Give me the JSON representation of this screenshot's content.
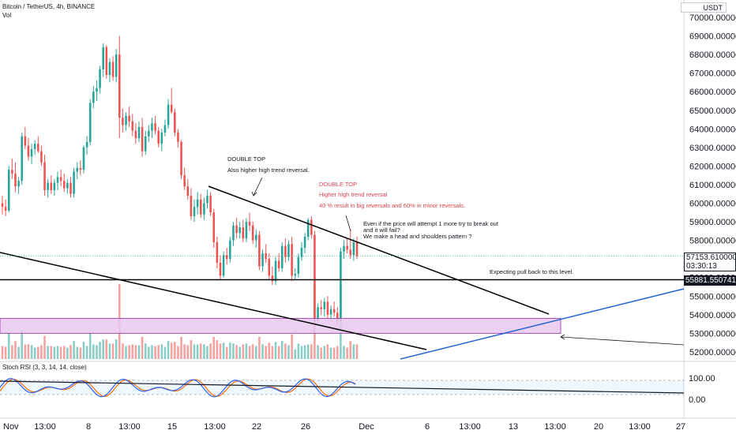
{
  "header": {
    "title": "Bitcoin / TetherUS, 4h, BINANCE",
    "volume_label": "Vol",
    "currency_label": "USDT"
  },
  "rsi_panel": {
    "label": "Stoch RSI (3, 3, 14, 14, close)",
    "upper_label": "100.00",
    "lower_label": "0.00",
    "k_color": "#2962ff",
    "d_color": "#ff6d00"
  },
  "price_boxes": {
    "last_price": "57153.610000",
    "countdown": "03:30:13",
    "level_price": "55881.550741"
  },
  "annotations": {
    "double_top_1_title": "DOUBLE TOP",
    "double_top_1_text": "Also higher high trend reversal.",
    "double_top_2_title": "DOUBLE TOP",
    "double_top_2_line1": "Higher high trend reversal",
    "double_top_2_line2": "40 % result in big reversals and 60% in minor reversals.",
    "note_line1": "Even if the price will attempt 1 more try to break out",
    "note_line2": "and it will fail?",
    "note_line3": "We make a head and shoulders pattern ?",
    "pullback_text": "Expecting pull back to this level."
  },
  "colors": {
    "up_candle": "#26a69a",
    "down_candle": "#ef5350",
    "trend_line_down": "#000000",
    "trend_line_up": "#1e63d6",
    "zone_fill": "#e7c8ee",
    "zone_border": "#9c27b0",
    "red_text": "#e0434e"
  },
  "chart_data": {
    "type": "candlestick",
    "symbol": "Bitcoin / TetherUS",
    "interval": "4h",
    "exchange": "BINANCE",
    "ylim": [
      51800,
      70300
    ],
    "y_ticks": [
      "52000.000000",
      "53000.000000",
      "54000.000000",
      "55000.000000",
      "56000.000000",
      "57000.000000",
      "58000.000000",
      "59000.000000",
      "60000.000000",
      "61000.000000",
      "62000.000000",
      "63000.000000",
      "64000.000000",
      "65000.000000",
      "66000.000000",
      "67000.000000",
      "68000.000000",
      "69000.000000",
      "70000.000000"
    ],
    "x_ticks": [
      "Nov",
      "13:00",
      "8",
      "13:00",
      "15",
      "13:00",
      "22",
      "26",
      "Dec",
      "6",
      "13:00",
      "13",
      "13:00",
      "20",
      "13:00",
      "27"
    ],
    "last_price": 57153.61,
    "horizontal_level": 55881.550741,
    "demand_zone": [
      53000,
      53800
    ],
    "candles": [
      [
        60000,
        60400,
        59400,
        59800
      ],
      [
        59800,
        60200,
        59300,
        59600
      ],
      [
        59600,
        62000,
        59500,
        61800
      ],
      [
        61800,
        62400,
        61300,
        61600
      ],
      [
        61600,
        62200,
        60600,
        60900
      ],
      [
        60900,
        61400,
        60500,
        61200
      ],
      [
        61200,
        63800,
        61000,
        63600
      ],
      [
        63600,
        64100,
        62900,
        63100
      ],
      [
        63100,
        63500,
        62300,
        62500
      ],
      [
        62500,
        63200,
        62100,
        62900
      ],
      [
        62900,
        63400,
        62600,
        63200
      ],
      [
        63200,
        63600,
        62700,
        62800
      ],
      [
        62800,
        63100,
        62000,
        62200
      ],
      [
        62200,
        62600,
        60400,
        60700
      ],
      [
        60700,
        61300,
        60300,
        61100
      ],
      [
        61100,
        61500,
        60500,
        60700
      ],
      [
        60700,
        61300,
        60400,
        61100
      ],
      [
        61100,
        61700,
        60700,
        61400
      ],
      [
        61400,
        61800,
        60900,
        61200
      ],
      [
        61200,
        61600,
        60600,
        60800
      ],
      [
        60800,
        61300,
        60500,
        61100
      ],
      [
        61100,
        61400,
        60300,
        60500
      ],
      [
        60500,
        61900,
        60300,
        61700
      ],
      [
        61700,
        62200,
        61300,
        61900
      ],
      [
        61900,
        62300,
        61500,
        61800
      ],
      [
        61800,
        63100,
        61600,
        63000
      ],
      [
        63000,
        63600,
        62600,
        63300
      ],
      [
        63300,
        65600,
        63100,
        65400
      ],
      [
        65400,
        66300,
        65100,
        66000
      ],
      [
        66000,
        66600,
        65500,
        66200
      ],
      [
        66200,
        67400,
        65900,
        67200
      ],
      [
        67200,
        68600,
        66800,
        68400
      ],
      [
        68400,
        68500,
        66700,
        66900
      ],
      [
        66900,
        67800,
        66500,
        67600
      ],
      [
        67600,
        67900,
        66600,
        66800
      ],
      [
        66800,
        68300,
        66500,
        68000
      ],
      [
        68000,
        69000,
        63500,
        64600
      ],
      [
        64600,
        65100,
        63800,
        64200
      ],
      [
        64200,
        64900,
        63900,
        64700
      ],
      [
        64700,
        65200,
        64100,
        64400
      ],
      [
        64400,
        64800,
        63600,
        63900
      ],
      [
        63900,
        64300,
        63200,
        63500
      ],
      [
        63500,
        64400,
        63300,
        64100
      ],
      [
        64100,
        64600,
        62500,
        62800
      ],
      [
        62800,
        63900,
        62600,
        63600
      ],
      [
        63600,
        64200,
        63300,
        63900
      ],
      [
        63900,
        64600,
        63500,
        64300
      ],
      [
        64300,
        64700,
        63700,
        63900
      ],
      [
        63900,
        64100,
        63000,
        63200
      ],
      [
        63200,
        64000,
        62800,
        63800
      ],
      [
        63800,
        64500,
        63600,
        64200
      ],
      [
        64200,
        65600,
        64000,
        65300
      ],
      [
        65300,
        66200,
        64800,
        64900
      ],
      [
        64900,
        65100,
        63600,
        63800
      ],
      [
        63800,
        64000,
        63000,
        63300
      ],
      [
        63300,
        63400,
        61300,
        61500
      ],
      [
        61500,
        61900,
        60700,
        60900
      ],
      [
        60900,
        61300,
        60200,
        60400
      ],
      [
        60400,
        60800,
        59100,
        59300
      ],
      [
        59300,
        60200,
        59000,
        59800
      ],
      [
        59800,
        60600,
        59400,
        60200
      ],
      [
        60200,
        60500,
        59200,
        59400
      ],
      [
        59400,
        60300,
        59100,
        60000
      ],
      [
        60000,
        60700,
        59700,
        60400
      ],
      [
        60400,
        60600,
        59300,
        59500
      ],
      [
        59500,
        59700,
        57600,
        57900
      ],
      [
        57900,
        58200,
        56500,
        56800
      ],
      [
        56800,
        57200,
        55900,
        56100
      ],
      [
        56100,
        57400,
        56000,
        57200
      ],
      [
        57200,
        57600,
        56700,
        57000
      ],
      [
        57000,
        58200,
        56800,
        58000
      ],
      [
        58000,
        59000,
        57700,
        58800
      ],
      [
        58800,
        59200,
        58100,
        58400
      ],
      [
        58400,
        59000,
        58100,
        58700
      ],
      [
        58700,
        59100,
        57900,
        58100
      ],
      [
        58100,
        59200,
        57900,
        59000
      ],
      [
        59000,
        59500,
        58500,
        58800
      ],
      [
        58800,
        59000,
        57800,
        58000
      ],
      [
        58000,
        58600,
        57600,
        58300
      ],
      [
        58300,
        58500,
        56400,
        56600
      ],
      [
        56600,
        57500,
        56300,
        57300
      ],
      [
        57300,
        57800,
        56800,
        57000
      ],
      [
        57000,
        57300,
        55900,
        56100
      ],
      [
        56100,
        56600,
        55600,
        55800
      ],
      [
        55800,
        57100,
        55600,
        56900
      ],
      [
        56900,
        57300,
        56300,
        56500
      ],
      [
        56500,
        57900,
        56300,
        57700
      ],
      [
        57700,
        58100,
        56800,
        57100
      ],
      [
        57100,
        58000,
        56900,
        57800
      ],
      [
        57800,
        58200,
        55800,
        56100
      ],
      [
        56100,
        56500,
        55900,
        56200
      ],
      [
        56200,
        57300,
        56000,
        57100
      ],
      [
        57100,
        57900,
        56900,
        57600
      ],
      [
        57600,
        58400,
        57300,
        58200
      ],
      [
        58200,
        59200,
        58000,
        59100
      ],
      [
        59100,
        59300,
        58100,
        58300
      ],
      [
        58300,
        58500,
        53500,
        53700
      ],
      [
        53700,
        54600,
        53500,
        54400
      ],
      [
        54400,
        54800,
        54000,
        54300
      ],
      [
        54300,
        54900,
        53900,
        54700
      ],
      [
        54700,
        55000,
        53800,
        54000
      ],
      [
        54000,
        54500,
        53700,
        54300
      ],
      [
        54300,
        54700,
        53900,
        54100
      ],
      [
        54100,
        54400,
        53400,
        53700
      ],
      [
        53700,
        57600,
        53600,
        57400
      ],
      [
        57400,
        58000,
        57000,
        57700
      ],
      [
        57700,
        58100,
        57300,
        57500
      ],
      [
        57500,
        58600,
        57000,
        57200
      ],
      [
        57200,
        58100,
        56900,
        57900
      ],
      [
        57900,
        58200,
        57000,
        57150
      ]
    ]
  }
}
